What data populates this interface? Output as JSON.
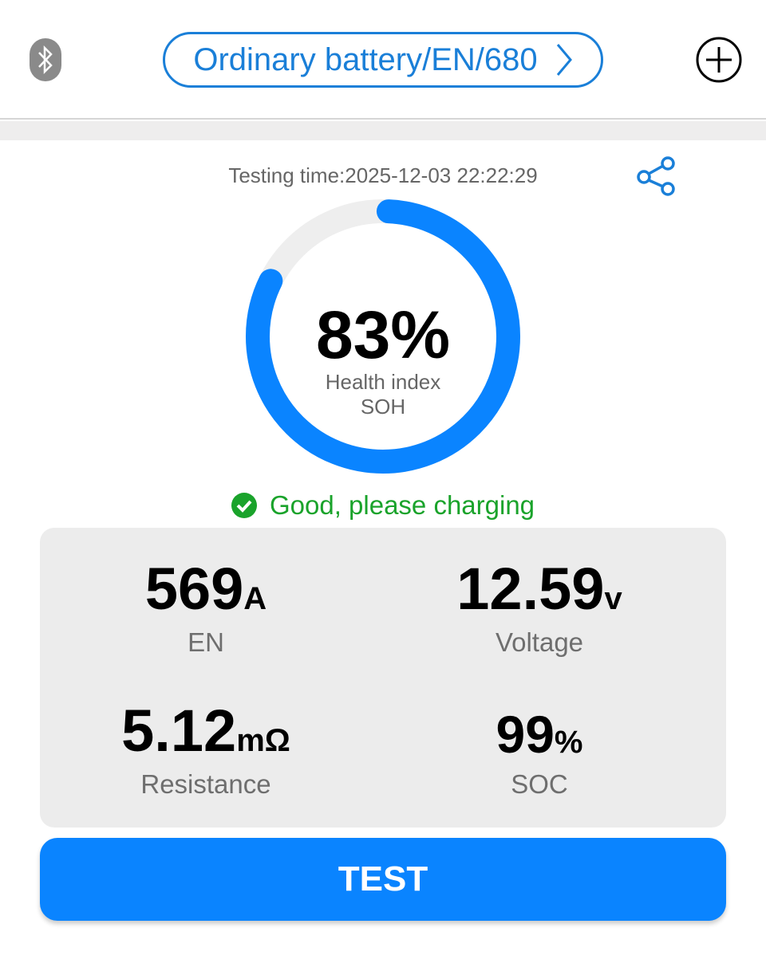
{
  "header": {
    "battery_selector": "Ordinary battery/EN/680",
    "bluetooth_icon": "bluetooth-icon",
    "add_icon": "plus-circle-icon"
  },
  "result": {
    "testing_time": "Testing time:2025-12-03 22:22:29",
    "soh_value": "83%",
    "soh_fraction": 0.83,
    "soh_label_1": "Health index",
    "soh_label_2": "SOH",
    "status_text": "Good, please charging",
    "colors": {
      "accent": "#0a84ff",
      "good": "#1aa32b",
      "track": "#eeeeee"
    }
  },
  "metrics": [
    {
      "value": "569",
      "unit": "A",
      "label": "EN"
    },
    {
      "value": "12.59",
      "unit": "v",
      "label": "Voltage"
    },
    {
      "value": "5.12",
      "unit": "mΩ",
      "label": "Resistance"
    },
    {
      "value": "99",
      "unit": "%",
      "label": "SOC"
    }
  ],
  "test_button": "TEST"
}
